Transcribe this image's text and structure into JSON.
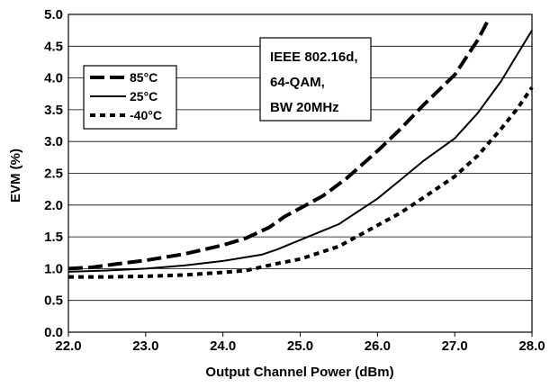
{
  "chart_data": {
    "type": "line",
    "title": "",
    "xlabel": "Output Channel Power (dBm)",
    "ylabel": "EVM (%)",
    "xlim": [
      22.0,
      28.0
    ],
    "ylim": [
      0.0,
      5.0
    ],
    "x_ticks": [
      "22.0",
      "23.0",
      "24.0",
      "25.0",
      "26.0",
      "27.0",
      "28.0"
    ],
    "y_ticks": [
      "0.0",
      "0.5",
      "1.0",
      "1.5",
      "2.0",
      "2.5",
      "3.0",
      "3.5",
      "4.0",
      "4.5",
      "5.0"
    ],
    "grid": "horizontal",
    "legend_position": "upper-left",
    "annotation": [
      "IEEE 802.16d,",
      "64-QAM,",
      "BW 20MHz"
    ],
    "series": [
      {
        "name": "85°C",
        "style": "long-dash",
        "x": [
          22.0,
          22.3,
          22.6,
          23.0,
          23.5,
          24.0,
          24.3,
          24.6,
          24.8,
          25.0,
          25.3,
          25.6,
          26.0,
          26.3,
          26.6,
          27.0,
          27.3,
          27.45
        ],
        "y": [
          1.0,
          1.02,
          1.07,
          1.13,
          1.23,
          1.37,
          1.48,
          1.65,
          1.82,
          1.95,
          2.15,
          2.42,
          2.85,
          3.2,
          3.58,
          4.05,
          4.6,
          4.95
        ]
      },
      {
        "name": "25°C",
        "style": "solid",
        "x": [
          22.0,
          22.5,
          23.0,
          23.5,
          24.0,
          24.5,
          24.7,
          25.0,
          25.5,
          26.0,
          26.3,
          26.6,
          27.0,
          27.3,
          27.6,
          27.8,
          28.0
        ],
        "y": [
          0.95,
          0.97,
          1.0,
          1.05,
          1.12,
          1.22,
          1.3,
          1.45,
          1.7,
          2.1,
          2.4,
          2.7,
          3.05,
          3.45,
          3.95,
          4.35,
          4.75
        ]
      },
      {
        "name": "-40°C",
        "style": "dotted",
        "x": [
          22.0,
          22.5,
          23.0,
          23.5,
          24.0,
          24.3,
          24.7,
          25.0,
          25.5,
          26.0,
          26.3,
          26.6,
          27.0,
          27.3,
          27.6,
          27.8,
          28.0
        ],
        "y": [
          0.87,
          0.87,
          0.88,
          0.9,
          0.94,
          0.97,
          1.08,
          1.15,
          1.35,
          1.68,
          1.88,
          2.12,
          2.45,
          2.78,
          3.2,
          3.5,
          3.85
        ]
      }
    ]
  }
}
